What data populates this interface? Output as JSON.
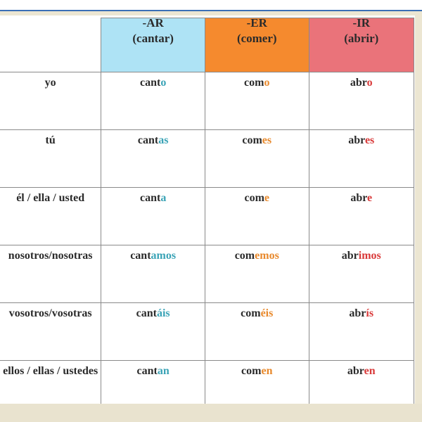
{
  "headers": [
    {
      "title": "-AR",
      "verb": "(cantar)",
      "color": "#aee3f5"
    },
    {
      "title": "-ER",
      "verb": "(comer)",
      "color": "#f58a2e"
    },
    {
      "title": "-IR",
      "verb": "(abrir)",
      "color": "#ea737a"
    }
  ],
  "ending_colors": {
    "ar": "#3aa3b6",
    "er": "#e8892c",
    "ir": "#d93a3a"
  },
  "rows": [
    {
      "pronoun": "yo",
      "ar": {
        "stem": "cant",
        "end": "o"
      },
      "er": {
        "stem": "com",
        "end": "o"
      },
      "ir": {
        "stem": "abr",
        "end": "o"
      }
    },
    {
      "pronoun": "tú",
      "ar": {
        "stem": "cant",
        "end": "as"
      },
      "er": {
        "stem": "com",
        "end": "es"
      },
      "ir": {
        "stem": "abr",
        "end": "es"
      }
    },
    {
      "pronoun": "él / ella / usted",
      "ar": {
        "stem": "cant",
        "end": "a"
      },
      "er": {
        "stem": "com",
        "end": "e"
      },
      "ir": {
        "stem": "abr",
        "end": "e"
      }
    },
    {
      "pronoun": "nosotros/nosotras",
      "ar": {
        "stem": "cant",
        "end": "amos"
      },
      "er": {
        "stem": "com",
        "end": "emos"
      },
      "ir": {
        "stem": "abr",
        "end": "imos"
      }
    },
    {
      "pronoun": "vosotros/vosotras",
      "ar": {
        "stem": "cant",
        "end": "áis"
      },
      "er": {
        "stem": "com",
        "end": "éis"
      },
      "ir": {
        "stem": "abr",
        "end": "ís"
      }
    },
    {
      "pronoun": "ellos / ellas / ustedes",
      "ar": {
        "stem": "cant",
        "end": "an"
      },
      "er": {
        "stem": "com",
        "end": "en"
      },
      "ir": {
        "stem": "abr",
        "end": "en"
      }
    }
  ]
}
